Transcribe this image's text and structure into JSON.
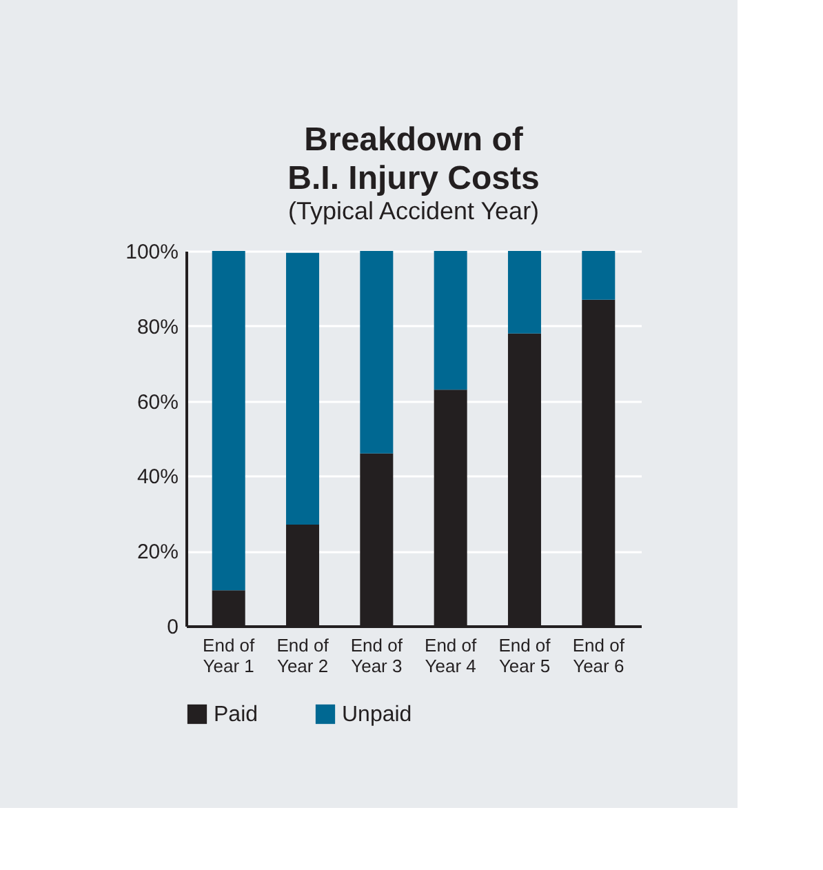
{
  "chart_data": {
    "type": "bar",
    "title": "Breakdown of\nB.I. Injury Costs",
    "subtitle": "(Typical Accident Year)",
    "categories": [
      "End of\nYear 1",
      "End of\nYear 2",
      "End of\nYear 3",
      "End of\nYear 4",
      "End of\nYear 5",
      "End of\nYear 6"
    ],
    "stacked": true,
    "series": [
      {
        "name": "Paid",
        "color": "#231f20",
        "values": [
          9.5,
          27,
          46,
          63,
          78,
          87
        ]
      },
      {
        "name": "Unpaid",
        "color": "#006892",
        "values": [
          90.5,
          72.5,
          54,
          37,
          22,
          13
        ]
      }
    ],
    "ylim": [
      0,
      100
    ],
    "yticks": [
      0,
      {
        "value": 20,
        "label": "20%"
      },
      {
        "value": 40,
        "label": "40%"
      },
      {
        "value": 60,
        "label": "60%"
      },
      {
        "value": 80,
        "label": "80%"
      },
      {
        "value": 100,
        "label": "100%"
      }
    ],
    "grid": "y",
    "legend": "bottom left"
  }
}
